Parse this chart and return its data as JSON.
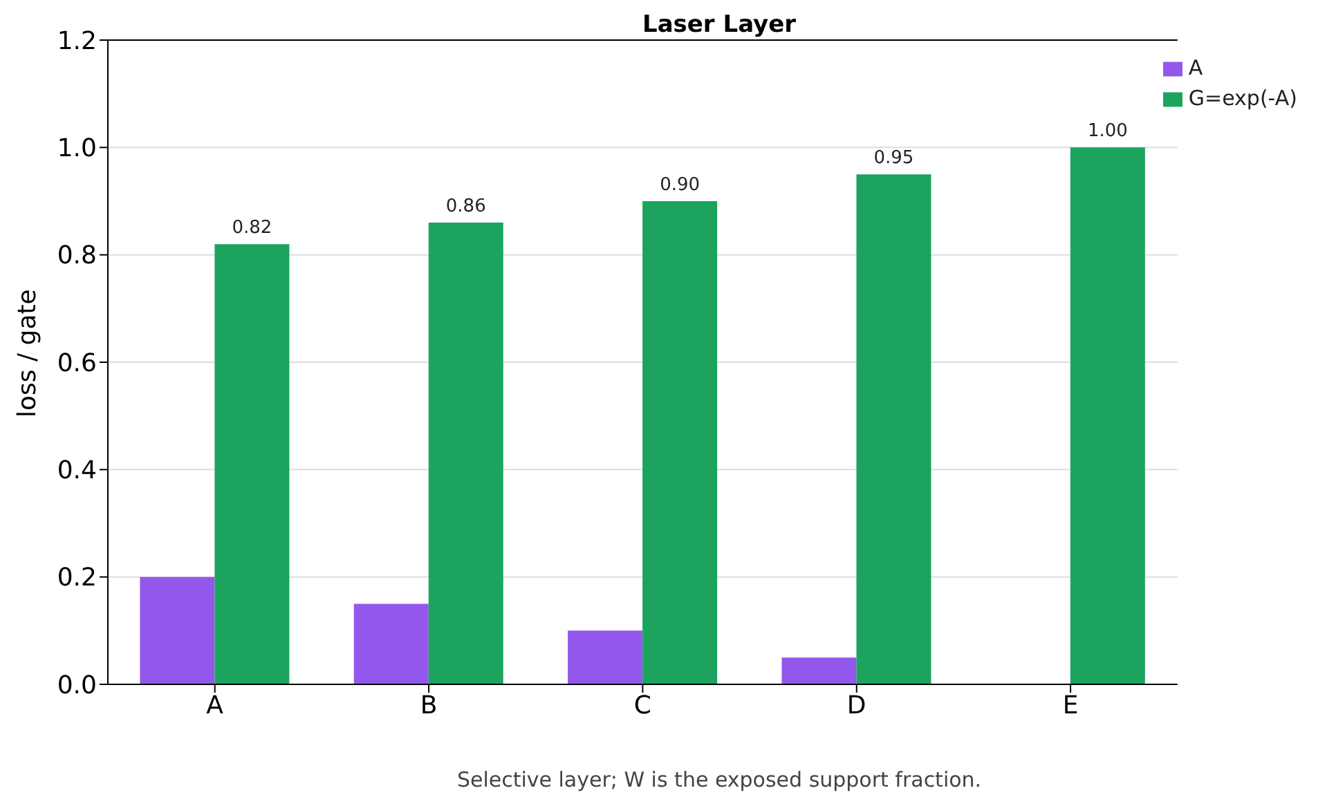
{
  "chart_data": {
    "type": "bar",
    "title": "Laser Layer",
    "ylabel": "loss / gate",
    "categories": [
      "A",
      "B",
      "C",
      "D",
      "E"
    ],
    "series": [
      {
        "name": "A",
        "color": "#9457eb",
        "values": [
          0.2,
          0.15,
          0.1,
          0.05,
          0
        ]
      },
      {
        "name": "G=exp(-A)",
        "color": "#1ca45f",
        "values": [
          0.82,
          0.86,
          0.9,
          0.95,
          1.0
        ],
        "value_labels": [
          "0.82",
          "0.86",
          "0.90",
          "0.95",
          "1.00"
        ]
      }
    ],
    "ylim": [
      0,
      1.2
    ],
    "yticks": [
      {
        "value": 0,
        "label": "0.0"
      },
      {
        "value": 0.2,
        "label": "0.2"
      },
      {
        "value": 0.4,
        "label": "0.4"
      },
      {
        "value": 0.6,
        "label": "0.6"
      },
      {
        "value": 0.8,
        "label": "0.8"
      },
      {
        "value": 1.0,
        "label": "1.0"
      },
      {
        "value": 1.2,
        "label": "1.2"
      }
    ],
    "grid": "y",
    "legend": "top right",
    "annotations": [
      "Selective layer; W is the exposed support fraction."
    ]
  }
}
